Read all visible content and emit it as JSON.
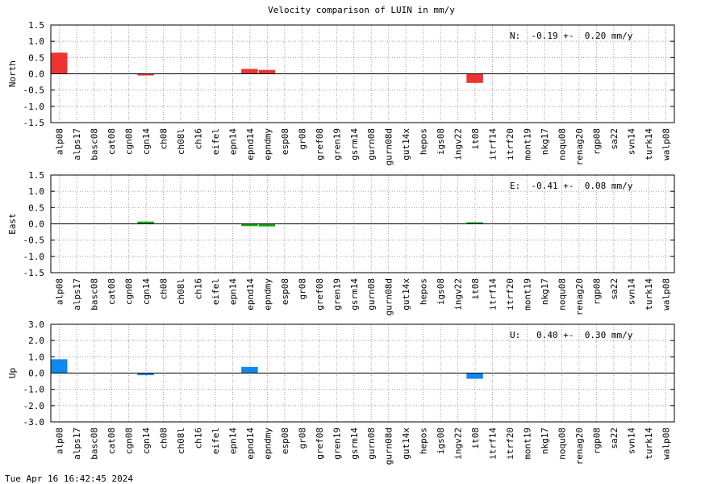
{
  "chart_data": {
    "title": "Velocity comparison of LUIN in mm/y",
    "timestamp": "Tue Apr 16 16:42:45 2024",
    "categories": [
      "alp08",
      "alps17",
      "basc08",
      "cat08",
      "cgn08",
      "cgn14",
      "ch08",
      "ch08l",
      "ch16",
      "eifel",
      "epn14",
      "epnd14",
      "epndmy",
      "esp08",
      "gr08",
      "gref08",
      "gren19",
      "gsrm14",
      "gurn08",
      "gurn08d",
      "gut14x",
      "hepos",
      "igs08",
      "ingv22",
      "it08",
      "itrf14",
      "itrf20",
      "mont19",
      "nkg17",
      "noqu08",
      "renag20",
      "rgp08",
      "sa22",
      "svn14",
      "turk14",
      "walp08"
    ],
    "panels": [
      {
        "type": "bar",
        "ylabel": "North",
        "ylim": [
          -1.5,
          1.5
        ],
        "yticks": [
          "1.5",
          "1.0",
          "0.5",
          "0.0",
          "-0.5",
          "-1.0",
          "-1.5"
        ],
        "ytick_values": [
          1.5,
          1.0,
          0.5,
          0.0,
          -0.5,
          -1.0,
          -1.5
        ],
        "color": "#ee3333",
        "annotation": "N:  -0.19 +-  0.20 mm/y",
        "bars": [
          {
            "category": "alp08",
            "value": 0.65
          },
          {
            "category": "cgn14",
            "value": -0.05
          },
          {
            "category": "epnd14",
            "value": 0.15
          },
          {
            "category": "epndmy",
            "value": 0.12
          },
          {
            "category": "it08",
            "value": -0.28
          }
        ]
      },
      {
        "type": "bar",
        "ylabel": "East",
        "ylim": [
          -1.5,
          1.5
        ],
        "yticks": [
          "1.5",
          "1.0",
          "0.5",
          "0.0",
          "-0.5",
          "-1.0",
          "-1.5"
        ],
        "ytick_values": [
          1.5,
          1.0,
          0.5,
          0.0,
          -0.5,
          -1.0,
          -1.5
        ],
        "color": "#11aa11",
        "annotation": "E:  -0.41 +-  0.08 mm/y",
        "bars": [
          {
            "category": "cgn14",
            "value": 0.07
          },
          {
            "category": "epnd14",
            "value": -0.07
          },
          {
            "category": "epndmy",
            "value": -0.08
          },
          {
            "category": "it08",
            "value": 0.04
          }
        ]
      },
      {
        "type": "bar",
        "ylabel": "Up",
        "ylim": [
          -3.0,
          3.0
        ],
        "yticks": [
          "3.0",
          "2.0",
          "1.0",
          "0.0",
          "-1.0",
          "-2.0",
          "-3.0"
        ],
        "ytick_values": [
          3.0,
          2.0,
          1.0,
          0.0,
          -1.0,
          -2.0,
          -3.0
        ],
        "color": "#1188ee",
        "annotation": "U:   0.40 +-  0.30 mm/y",
        "bars": [
          {
            "category": "alp08",
            "value": 0.85
          },
          {
            "category": "cgn14",
            "value": -0.13
          },
          {
            "category": "epnd14",
            "value": 0.38
          },
          {
            "category": "it08",
            "value": -0.35
          }
        ]
      }
    ]
  }
}
